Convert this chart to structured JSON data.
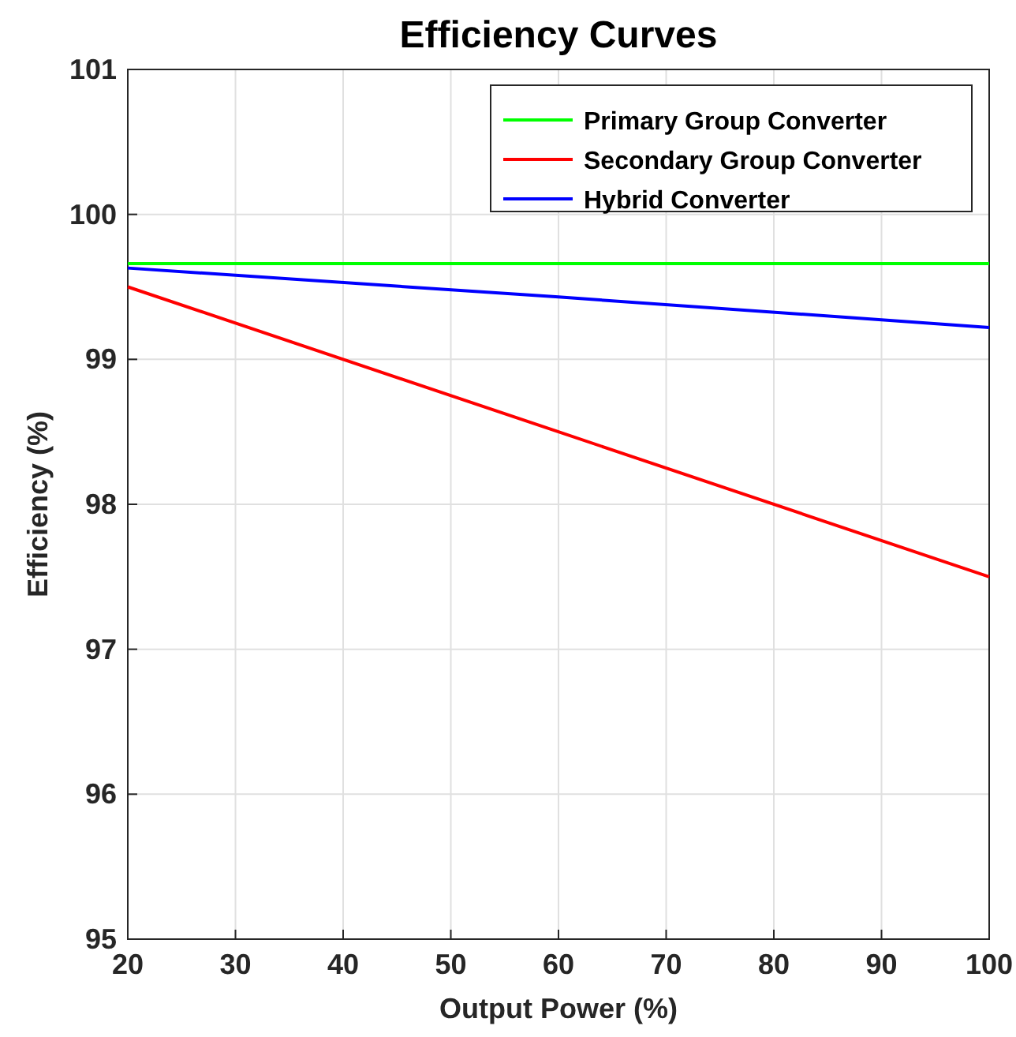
{
  "chart_data": {
    "type": "line",
    "title": "Efficiency Curves",
    "xlabel": "Output Power (%)",
    "ylabel": "Efficiency (%)",
    "x": [
      20,
      60,
      100
    ],
    "series": [
      {
        "name": "Primary Group Converter",
        "color": "#00ff00",
        "values": [
          99.66,
          99.66,
          99.66
        ]
      },
      {
        "name": "Secondary Group Converter",
        "color": "#ff0000",
        "values": [
          99.5,
          98.5,
          97.5
        ]
      },
      {
        "name": "Hybrid Converter",
        "color": "#0000ff",
        "values": [
          99.63,
          99.43,
          99.22
        ]
      }
    ],
    "xlim": [
      20,
      100
    ],
    "xticks": [
      20,
      30,
      40,
      50,
      60,
      70,
      80,
      90,
      100
    ],
    "ylim": [
      95,
      101
    ],
    "yticks": [
      95,
      96,
      97,
      98,
      99,
      100,
      101
    ],
    "grid": true,
    "legend": "top right",
    "line_style": "solid",
    "marker": "none"
  }
}
